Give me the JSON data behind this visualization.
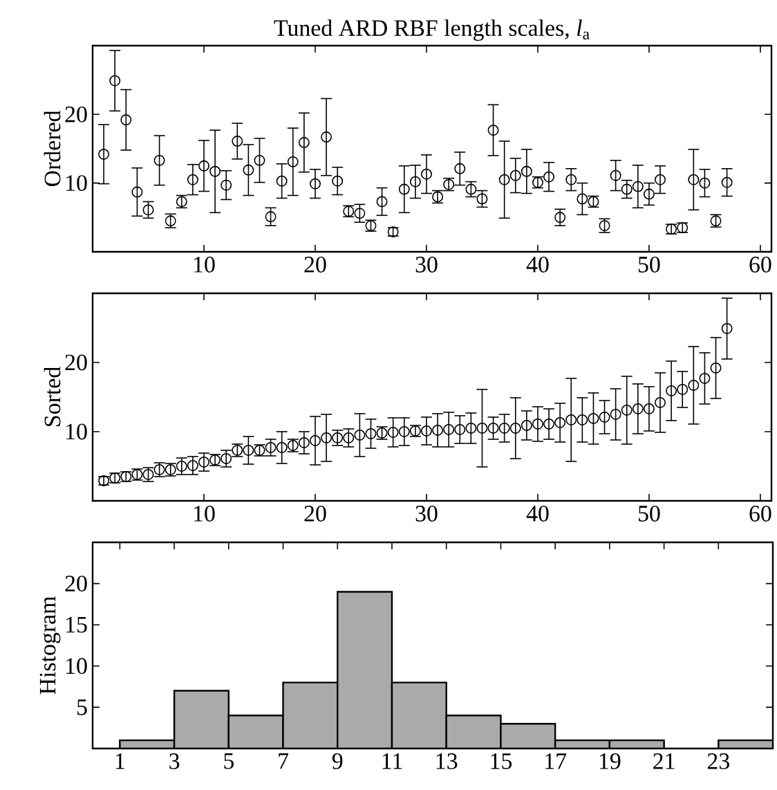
{
  "chart_data": [
    {
      "type": "scatter",
      "title": "Tuned ARD RBF length scales, *l*$_{a}$",
      "ylabel": "Ordered",
      "marker": "circle",
      "color": "#000000",
      "x": [
        1,
        2,
        3,
        4,
        5,
        6,
        7,
        8,
        9,
        10,
        11,
        12,
        13,
        14,
        15,
        16,
        17,
        18,
        19,
        20,
        21,
        22,
        23,
        24,
        25,
        26,
        27,
        28,
        29,
        30,
        31,
        32,
        33,
        34,
        35,
        36,
        37,
        38,
        39,
        40,
        41,
        42,
        43,
        44,
        45,
        46,
        47,
        48,
        49,
        50,
        51,
        52,
        53,
        54,
        55,
        56,
        57
      ],
      "values": [
        14.2,
        24.9,
        19.2,
        8.7,
        6.1,
        13.3,
        4.5,
        7.3,
        10.5,
        12.5,
        11.7,
        9.7,
        16.1,
        11.9,
        13.3,
        5.1,
        10.3,
        13.1,
        15.9,
        9.9,
        16.7,
        10.3,
        5.9,
        5.6,
        3.8,
        7.3,
        2.9,
        9.1,
        10.2,
        11.3,
        8.0,
        9.8,
        12.1,
        9.1,
        7.7,
        17.7,
        10.5,
        11.1,
        11.7,
        10.1,
        10.9,
        5.0,
        10.5,
        7.7,
        7.3,
        3.8,
        11.1,
        9.1,
        9.5,
        8.4,
        10.5,
        3.3,
        3.5,
        10.5,
        10.0,
        4.5,
        10.1
      ],
      "errors": [
        4.3,
        4.4,
        4.4,
        3.5,
        1.2,
        3.6,
        1.0,
        0.9,
        2.2,
        3.7,
        6,
        2.1,
        2.6,
        3.7,
        3.2,
        1.3,
        2.5,
        4.9,
        4.3,
        2.1,
        5.6,
        2.0,
        0.8,
        1.3,
        0.8,
        2.0,
        0.6,
        3.4,
        2.4,
        2.8,
        0.9,
        0.9,
        2.4,
        1.1,
        1.2,
        3.7,
        5.6,
        2.5,
        3.2,
        0.8,
        2.1,
        1.2,
        1.6,
        2.3,
        0.8,
        1.0,
        2.2,
        1.3,
        3.1,
        1.6,
        2.0,
        0.7,
        0.7,
        4.4,
        2.0,
        0.9,
        2.0
      ],
      "xlim": [
        0,
        61
      ],
      "xticks": [
        10,
        20,
        30,
        40,
        50,
        60
      ],
      "ylim": [
        0,
        30
      ],
      "yticks": [
        10,
        20
      ]
    },
    {
      "type": "scatter",
      "ylabel": "Sorted",
      "marker": "circle",
      "color": "#000000",
      "x": [
        1,
        2,
        3,
        4,
        5,
        6,
        7,
        8,
        9,
        10,
        11,
        12,
        13,
        14,
        15,
        16,
        17,
        18,
        19,
        20,
        21,
        22,
        23,
        24,
        25,
        26,
        27,
        28,
        29,
        30,
        31,
        32,
        33,
        34,
        35,
        36,
        37,
        38,
        39,
        40,
        41,
        42,
        43,
        44,
        45,
        46,
        47,
        48,
        49,
        50,
        51,
        52,
        53,
        54,
        55,
        56,
        57
      ],
      "values": [
        2.9,
        3.3,
        3.5,
        3.8,
        3.8,
        4.5,
        4.5,
        5.0,
        5.1,
        5.6,
        5.9,
        6.1,
        7.3,
        7.3,
        7.3,
        7.7,
        7.7,
        8.0,
        8.4,
        8.7,
        9.1,
        9.1,
        9.1,
        9.5,
        9.7,
        9.8,
        9.9,
        10.0,
        10.1,
        10.1,
        10.2,
        10.3,
        10.3,
        10.5,
        10.5,
        10.5,
        10.5,
        10.5,
        10.9,
        11.1,
        11.1,
        11.3,
        11.7,
        11.7,
        11.9,
        12.1,
        12.5,
        13.1,
        13.3,
        13.3,
        14.2,
        15.9,
        16.1,
        16.7,
        17.7,
        19.2,
        24.9
      ],
      "errors": [
        0.6,
        0.7,
        0.7,
        0.8,
        1.0,
        1.0,
        0.9,
        1.2,
        1.3,
        1.3,
        0.8,
        1.2,
        0.9,
        2.0,
        0.8,
        1.2,
        2.3,
        0.9,
        1.6,
        3.5,
        3.4,
        1.1,
        1.3,
        3.1,
        2.1,
        0.9,
        2.1,
        2.0,
        0.8,
        2.0,
        2.4,
        2.5,
        2.0,
        2.2,
        5.6,
        1.6,
        2.0,
        4.4,
        2.1,
        2.5,
        2.2,
        2.8,
        6,
        3.2,
        3.7,
        2.4,
        3.7,
        4.9,
        3.6,
        3.2,
        4.3,
        4.3,
        2.6,
        5.6,
        3.7,
        4.4,
        4.4
      ],
      "xlim": [
        0,
        61
      ],
      "xticks": [
        10,
        20,
        30,
        40,
        50,
        60
      ],
      "ylim": [
        0,
        30
      ],
      "yticks": [
        10,
        20
      ]
    },
    {
      "type": "histogram",
      "ylabel": "Histogram",
      "color": "#aaaaaa",
      "bins": [
        1,
        3,
        5,
        7,
        9,
        11,
        13,
        15,
        17,
        19,
        21,
        23,
        25
      ],
      "values": [
        1,
        7,
        4,
        8,
        19,
        8,
        4,
        3,
        1,
        1,
        0,
        1
      ],
      "xlim": [
        0,
        25
      ],
      "xticks": [
        1,
        3,
        5,
        7,
        9,
        11,
        13,
        15,
        17,
        19,
        21,
        23
      ],
      "ylim": [
        0,
        25
      ],
      "yticks": [
        5,
        10,
        15,
        20
      ]
    }
  ]
}
